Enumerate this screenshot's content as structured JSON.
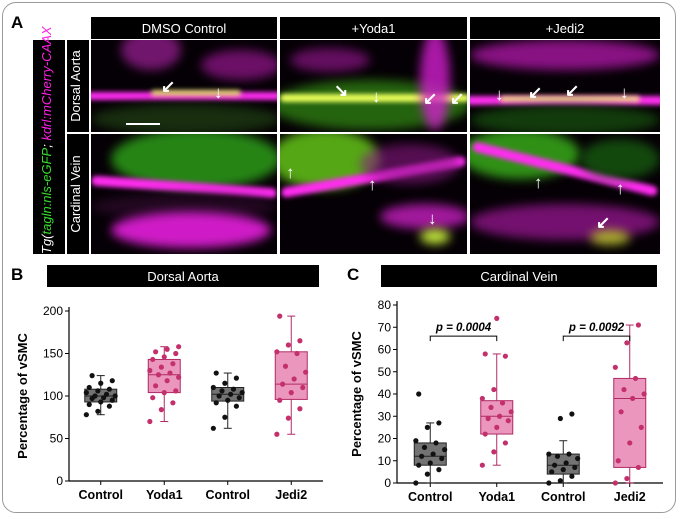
{
  "panel_labels": {
    "a": "A",
    "b": "B",
    "c": "C"
  },
  "panel_a": {
    "columns": [
      "DMSO Control",
      "+Yoda1",
      "+Jedi2"
    ],
    "rows": [
      "Dorsal Aorta",
      "Cardinal Vein"
    ],
    "ylabel_part1": "Tg(",
    "ylabel_green": "tagln:nls-eGFP",
    "ylabel_sep": ";",
    "ylabel_magenta": "kdrl:mCherry-CAAX",
    "ylabel_end": ")",
    "colors": {
      "green": "#35e02b",
      "magenta": "#ff1fe6"
    }
  },
  "chart_data": [
    {
      "type": "box",
      "title": "Dorsal Aorta",
      "ylabel": "Percentage of vSMC",
      "categories": [
        "Control",
        "Yoda1",
        "Control",
        "Jedi2"
      ],
      "ylim": [
        0,
        200
      ],
      "yticks": [
        0,
        50,
        100,
        150,
        200
      ],
      "colors": [
        "#5a5a5a",
        "#e884b2",
        "#5a5a5a",
        "#e884b2"
      ],
      "point_colors": [
        "#111111",
        "#c4306c",
        "#111111",
        "#c4306c"
      ],
      "boxes": [
        {
          "min": 78,
          "q1": 93,
          "median": 100,
          "q3": 108,
          "max": 124
        },
        {
          "min": 70,
          "q1": 104,
          "median": 125,
          "q3": 143,
          "max": 158
        },
        {
          "min": 62,
          "q1": 94,
          "median": 102,
          "q3": 110,
          "max": 127
        },
        {
          "min": 55,
          "q1": 96,
          "median": 114,
          "q3": 152,
          "max": 194
        }
      ],
      "points": [
        [
          78,
          82,
          88,
          90,
          93,
          95,
          97,
          98,
          100,
          100,
          102,
          104,
          106,
          108,
          110,
          115,
          118,
          124
        ],
        [
          70,
          84,
          92,
          98,
          104,
          106,
          112,
          118,
          122,
          125,
          127,
          130,
          134,
          138,
          143,
          146,
          150,
          152,
          155,
          158
        ],
        [
          62,
          75,
          88,
          92,
          95,
          98,
          100,
          102,
          104,
          106,
          108,
          110,
          115,
          121,
          127
        ],
        [
          55,
          74,
          85,
          95,
          104,
          110,
          114,
          120,
          128,
          135,
          150,
          152,
          160,
          165,
          194
        ]
      ]
    },
    {
      "type": "box",
      "title": "Cardinal Vein",
      "ylabel": "Percentage of vSMC",
      "categories": [
        "Control",
        "Yoda1",
        "Control",
        "Jedi2"
      ],
      "ylim": [
        0,
        80
      ],
      "yticks": [
        0,
        10,
        20,
        30,
        40,
        50,
        60,
        70,
        80
      ],
      "colors": [
        "#5a5a5a",
        "#e884b2",
        "#5a5a5a",
        "#e884b2"
      ],
      "point_colors": [
        "#111111",
        "#c4306c",
        "#111111",
        "#c4306c"
      ],
      "boxes": [
        {
          "min": 0,
          "q1": 8,
          "median": 12,
          "q3": 18,
          "max": 27
        },
        {
          "min": 8,
          "q1": 22,
          "median": 30,
          "q3": 37,
          "max": 58
        },
        {
          "min": 0,
          "q1": 4,
          "median": 8,
          "q3": 13,
          "max": 19
        },
        {
          "min": 0,
          "q1": 7,
          "median": 38,
          "q3": 47,
          "max": 71
        }
      ],
      "points": [
        [
          0,
          4,
          6,
          8,
          9,
          11,
          12,
          13,
          15,
          16,
          18,
          19,
          25,
          27,
          40
        ],
        [
          8,
          14,
          18,
          22,
          25,
          28,
          29,
          30,
          32,
          34,
          36,
          38,
          42,
          57,
          58,
          74
        ],
        [
          0,
          1,
          3,
          5,
          6,
          7,
          8,
          9,
          11,
          12,
          13,
          13,
          29,
          31
        ],
        [
          0,
          2,
          7,
          10,
          18,
          25,
          32,
          38,
          40,
          42,
          47,
          52,
          63,
          71
        ]
      ],
      "comparisons": [
        {
          "pair": [
            0,
            1
          ],
          "label": "p = 0.0004",
          "y": 66
        },
        {
          "pair": [
            2,
            3
          ],
          "label": "p = 0.0092",
          "y": 66
        }
      ]
    }
  ]
}
